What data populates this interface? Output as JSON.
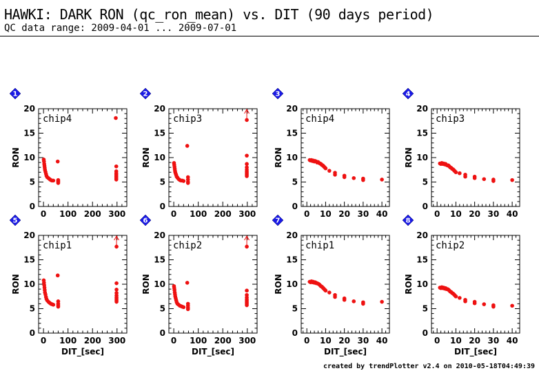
{
  "header": {
    "title": "HAWKI: DARK RON (qc_ron_mean) vs. DIT (90 days period)",
    "subtitle": "QC data range: 2009-04-01 ... 2009-07-01"
  },
  "footer": {
    "credit": "created by trendPlotter v2.4 on 2010-05-18T04:49:39"
  },
  "colors": {
    "points": "#ee1111",
    "badge": "#1a1ae6",
    "axis": "#000000"
  },
  "chart_data": [
    {
      "type": "scatter",
      "index": "1",
      "label": "chip4",
      "xlabel": "",
      "ylabel": "RON",
      "xlim": [
        -20,
        340
      ],
      "ylim": [
        0,
        20
      ],
      "xticks": [
        0,
        100,
        200,
        300
      ],
      "yticks": [
        0,
        5,
        10,
        15,
        20
      ],
      "offscale": false,
      "points": [
        [
          1,
          9.6
        ],
        [
          2,
          9.2
        ],
        [
          3,
          8.7
        ],
        [
          4,
          8.3
        ],
        [
          5,
          7.9
        ],
        [
          6,
          7.5
        ],
        [
          8,
          7.1
        ],
        [
          10,
          6.7
        ],
        [
          12,
          6.3
        ],
        [
          15,
          6.0
        ],
        [
          20,
          5.8
        ],
        [
          25,
          5.6
        ],
        [
          30,
          5.4
        ],
        [
          35,
          5.3
        ],
        [
          40,
          5.3
        ],
        [
          58,
          9.2
        ],
        [
          60,
          5.4
        ],
        [
          60,
          5.0
        ],
        [
          60,
          4.8
        ],
        [
          60,
          5.2
        ],
        [
          295,
          18.1
        ],
        [
          297,
          8.2
        ],
        [
          297,
          7.2
        ],
        [
          297,
          6.8
        ],
        [
          297,
          6.5
        ],
        [
          297,
          6.2
        ],
        [
          297,
          6.0
        ],
        [
          297,
          5.7
        ],
        [
          297,
          5.5
        ]
      ]
    },
    {
      "type": "scatter",
      "index": "2",
      "label": "chip3",
      "xlabel": "",
      "ylabel": "RON",
      "xlim": [
        -20,
        340
      ],
      "ylim": [
        0,
        20
      ],
      "xticks": [
        0,
        100,
        200,
        300
      ],
      "yticks": [
        0,
        5,
        10,
        15,
        20
      ],
      "offscale": true,
      "points": [
        [
          1,
          8.9
        ],
        [
          2,
          8.5
        ],
        [
          3,
          8.1
        ],
        [
          4,
          7.7
        ],
        [
          5,
          7.3
        ],
        [
          6,
          7.0
        ],
        [
          8,
          6.7
        ],
        [
          10,
          6.4
        ],
        [
          12,
          6.1
        ],
        [
          15,
          5.9
        ],
        [
          20,
          5.6
        ],
        [
          25,
          5.4
        ],
        [
          30,
          5.3
        ],
        [
          35,
          5.3
        ],
        [
          40,
          5.2
        ],
        [
          55,
          12.4
        ],
        [
          58,
          6.0
        ],
        [
          58,
          5.5
        ],
        [
          58,
          5.0
        ],
        [
          58,
          4.8
        ],
        [
          298,
          17.7
        ],
        [
          298,
          10.4
        ],
        [
          298,
          8.7
        ],
        [
          298,
          8.0
        ],
        [
          298,
          7.5
        ],
        [
          298,
          7.1
        ],
        [
          298,
          6.8
        ],
        [
          298,
          6.5
        ],
        [
          298,
          6.2
        ]
      ]
    },
    {
      "type": "scatter",
      "index": "3",
      "label": "chip4",
      "xlabel": "",
      "ylabel": "RON",
      "xlim": [
        -3,
        44
      ],
      "ylim": [
        0,
        20
      ],
      "xticks": [
        0,
        10,
        20,
        30,
        40
      ],
      "yticks": [
        0,
        5,
        10,
        15,
        20
      ],
      "offscale": false,
      "points": [
        [
          1.5,
          9.5
        ],
        [
          2,
          9.4
        ],
        [
          2.5,
          9.5
        ],
        [
          3,
          9.3
        ],
        [
          3.5,
          9.4
        ],
        [
          4,
          9.2
        ],
        [
          4.5,
          9.3
        ],
        [
          5,
          9.2
        ],
        [
          5.5,
          9.0
        ],
        [
          6,
          9.1
        ],
        [
          6.5,
          8.9
        ],
        [
          7,
          8.8
        ],
        [
          7.5,
          8.7
        ],
        [
          8,
          8.5
        ],
        [
          8.5,
          8.4
        ],
        [
          9,
          8.2
        ],
        [
          9.5,
          8.0
        ],
        [
          10,
          7.8
        ],
        [
          12,
          7.3
        ],
        [
          15,
          6.9
        ],
        [
          15,
          6.5
        ],
        [
          20,
          6.3
        ],
        [
          20,
          6.0
        ],
        [
          25,
          5.8
        ],
        [
          30,
          5.7
        ],
        [
          30,
          5.4
        ],
        [
          40,
          5.5
        ]
      ]
    },
    {
      "type": "scatter",
      "index": "4",
      "label": "chip3",
      "xlabel": "",
      "ylabel": "RON",
      "xlim": [
        -3,
        44
      ],
      "ylim": [
        0,
        20
      ],
      "xticks": [
        0,
        10,
        20,
        30,
        40
      ],
      "yticks": [
        0,
        5,
        10,
        15,
        20
      ],
      "offscale": false,
      "points": [
        [
          1.5,
          8.8
        ],
        [
          2,
          8.7
        ],
        [
          2.5,
          8.9
        ],
        [
          3,
          8.7
        ],
        [
          3.5,
          8.8
        ],
        [
          4,
          8.6
        ],
        [
          4.5,
          8.7
        ],
        [
          5,
          8.5
        ],
        [
          5.5,
          8.4
        ],
        [
          6,
          8.4
        ],
        [
          6.5,
          8.2
        ],
        [
          7,
          8.0
        ],
        [
          7.5,
          7.9
        ],
        [
          8,
          7.7
        ],
        [
          8.5,
          7.6
        ],
        [
          9,
          7.4
        ],
        [
          9.5,
          7.2
        ],
        [
          10,
          7.0
        ],
        [
          12,
          6.8
        ],
        [
          15,
          6.5
        ],
        [
          15,
          6.1
        ],
        [
          20,
          6.1
        ],
        [
          20,
          5.8
        ],
        [
          25,
          5.6
        ],
        [
          30,
          5.5
        ],
        [
          30,
          5.2
        ],
        [
          40,
          5.4
        ]
      ]
    },
    {
      "type": "scatter",
      "index": "5",
      "label": "chip1",
      "xlabel": "DIT_[sec]",
      "ylabel": "RON",
      "xlim": [
        -20,
        340
      ],
      "ylim": [
        0,
        20
      ],
      "xticks": [
        0,
        100,
        200,
        300
      ],
      "yticks": [
        0,
        5,
        10,
        15,
        20
      ],
      "offscale": true,
      "points": [
        [
          1,
          10.8
        ],
        [
          2,
          10.3
        ],
        [
          3,
          9.8
        ],
        [
          4,
          9.3
        ],
        [
          5,
          8.8
        ],
        [
          6,
          8.3
        ],
        [
          8,
          7.9
        ],
        [
          10,
          7.4
        ],
        [
          12,
          7.0
        ],
        [
          15,
          6.7
        ],
        [
          20,
          6.4
        ],
        [
          25,
          6.2
        ],
        [
          30,
          6.0
        ],
        [
          35,
          5.9
        ],
        [
          40,
          5.8
        ],
        [
          58,
          11.8
        ],
        [
          60,
          6.5
        ],
        [
          60,
          6.0
        ],
        [
          60,
          5.7
        ],
        [
          60,
          5.4
        ],
        [
          298,
          17.7
        ],
        [
          298,
          10.2
        ],
        [
          298,
          8.9
        ],
        [
          298,
          8.2
        ],
        [
          298,
          7.7
        ],
        [
          298,
          7.3
        ],
        [
          298,
          7.0
        ],
        [
          298,
          6.7
        ],
        [
          298,
          6.4
        ]
      ]
    },
    {
      "type": "scatter",
      "index": "6",
      "label": "chip2",
      "xlabel": "DIT_[sec]",
      "ylabel": "RON",
      "xlim": [
        -20,
        340
      ],
      "ylim": [
        0,
        20
      ],
      "xticks": [
        0,
        100,
        200,
        300
      ],
      "yticks": [
        0,
        5,
        10,
        15,
        20
      ],
      "offscale": true,
      "points": [
        [
          1,
          9.6
        ],
        [
          2,
          9.2
        ],
        [
          3,
          8.8
        ],
        [
          4,
          8.3
        ],
        [
          5,
          7.9
        ],
        [
          6,
          7.5
        ],
        [
          8,
          7.1
        ],
        [
          10,
          6.7
        ],
        [
          12,
          6.3
        ],
        [
          15,
          6.0
        ],
        [
          20,
          5.8
        ],
        [
          25,
          5.6
        ],
        [
          30,
          5.5
        ],
        [
          35,
          5.4
        ],
        [
          40,
          5.3
        ],
        [
          55,
          10.3
        ],
        [
          58,
          6.0
        ],
        [
          58,
          5.6
        ],
        [
          58,
          5.2
        ],
        [
          58,
          4.9
        ],
        [
          298,
          17.7
        ],
        [
          298,
          8.7
        ],
        [
          298,
          7.8
        ],
        [
          298,
          7.3
        ],
        [
          298,
          6.9
        ],
        [
          298,
          6.6
        ],
        [
          298,
          6.3
        ],
        [
          298,
          6.0
        ],
        [
          298,
          5.7
        ]
      ]
    },
    {
      "type": "scatter",
      "index": "7",
      "label": "chip1",
      "xlabel": "DIT_[sec]",
      "ylabel": "RON",
      "xlim": [
        -3,
        44
      ],
      "ylim": [
        0,
        20
      ],
      "xticks": [
        0,
        10,
        20,
        30,
        40
      ],
      "yticks": [
        0,
        5,
        10,
        15,
        20
      ],
      "offscale": false,
      "points": [
        [
          1.5,
          10.5
        ],
        [
          2,
          10.4
        ],
        [
          2.5,
          10.6
        ],
        [
          3,
          10.4
        ],
        [
          3.5,
          10.5
        ],
        [
          4,
          10.3
        ],
        [
          4.5,
          10.4
        ],
        [
          5,
          10.2
        ],
        [
          5.5,
          10.2
        ],
        [
          6,
          10.1
        ],
        [
          6.5,
          10.0
        ],
        [
          7,
          9.8
        ],
        [
          7.5,
          9.6
        ],
        [
          8,
          9.5
        ],
        [
          8.5,
          9.3
        ],
        [
          9,
          9.1
        ],
        [
          9.5,
          8.9
        ],
        [
          10,
          8.7
        ],
        [
          12,
          8.3
        ],
        [
          15,
          7.8
        ],
        [
          15,
          7.4
        ],
        [
          20,
          7.1
        ],
        [
          20,
          6.8
        ],
        [
          25,
          6.5
        ],
        [
          30,
          6.3
        ],
        [
          30,
          6.0
        ],
        [
          40,
          6.4
        ]
      ]
    },
    {
      "type": "scatter",
      "index": "8",
      "label": "chip2",
      "xlabel": "DIT_[sec]",
      "ylabel": "RON",
      "xlim": [
        -3,
        44
      ],
      "ylim": [
        0,
        20
      ],
      "xticks": [
        0,
        10,
        20,
        30,
        40
      ],
      "yticks": [
        0,
        5,
        10,
        15,
        20
      ],
      "offscale": false,
      "points": [
        [
          1.5,
          9.3
        ],
        [
          2,
          9.2
        ],
        [
          2.5,
          9.4
        ],
        [
          3,
          9.2
        ],
        [
          3.5,
          9.3
        ],
        [
          4,
          9.1
        ],
        [
          4.5,
          9.2
        ],
        [
          5,
          9.0
        ],
        [
          5.5,
          9.0
        ],
        [
          6,
          8.9
        ],
        [
          6.5,
          8.7
        ],
        [
          7,
          8.5
        ],
        [
          7.5,
          8.4
        ],
        [
          8,
          8.2
        ],
        [
          8.5,
          8.1
        ],
        [
          9,
          7.9
        ],
        [
          9.5,
          7.7
        ],
        [
          10,
          7.5
        ],
        [
          12,
          7.2
        ],
        [
          15,
          6.8
        ],
        [
          15,
          6.5
        ],
        [
          20,
          6.4
        ],
        [
          20,
          6.1
        ],
        [
          25,
          5.9
        ],
        [
          30,
          5.7
        ],
        [
          30,
          5.4
        ],
        [
          40,
          5.6
        ]
      ]
    }
  ]
}
